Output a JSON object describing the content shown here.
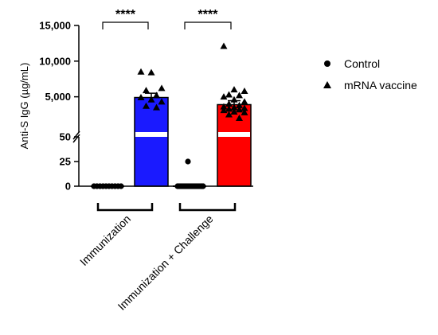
{
  "chart_data": {
    "type": "bar",
    "ylabel": "Anti-S IgG (µg/mL)",
    "y_axis_broken": true,
    "y_axis_segments": [
      {
        "range": [
          0,
          50
        ],
        "ticks": [
          0,
          25,
          50
        ],
        "tick_labels": [
          "0",
          "25",
          "50"
        ]
      },
      {
        "range": [
          50,
          15000
        ],
        "ticks": [
          5000,
          10000,
          15000
        ],
        "tick_labels": [
          "5,000",
          "10,000",
          "15,000"
        ]
      }
    ],
    "groups": [
      "Immunization",
      "Immunization + Challenge"
    ],
    "series": [
      {
        "name": "Control",
        "marker": "circle",
        "color": "#000000",
        "values": [
          0,
          0
        ],
        "points": [
          [
            0,
            0,
            0,
            0,
            0,
            0,
            0,
            0,
            0,
            0
          ],
          [
            25,
            0,
            0,
            0,
            0,
            0,
            0,
            0,
            0,
            0,
            0,
            0,
            0,
            0,
            0,
            0,
            0,
            0
          ]
        ]
      },
      {
        "name": "mRNA vaccine",
        "marker": "triangle",
        "colors": [
          "#1a1aff",
          "#ff0000"
        ],
        "values": [
          4900,
          3900
        ],
        "error": [
          600,
          550
        ],
        "points": [
          [
            8500,
            8400,
            6200,
            5900,
            5200,
            4900,
            4600,
            4300,
            3700,
            3500
          ],
          [
            12100,
            6000,
            5800,
            5300,
            5200,
            5000,
            4600,
            4300,
            4000,
            3800,
            3600,
            3500,
            3400,
            3300,
            3200,
            3100,
            2900,
            2800,
            2500,
            2000
          ]
        ]
      }
    ],
    "significance": [
      {
        "group": "Immunization",
        "label": "****"
      },
      {
        "group": "Immunization + Challenge",
        "label": "****"
      }
    ],
    "legend_position": "right",
    "grid": false
  }
}
